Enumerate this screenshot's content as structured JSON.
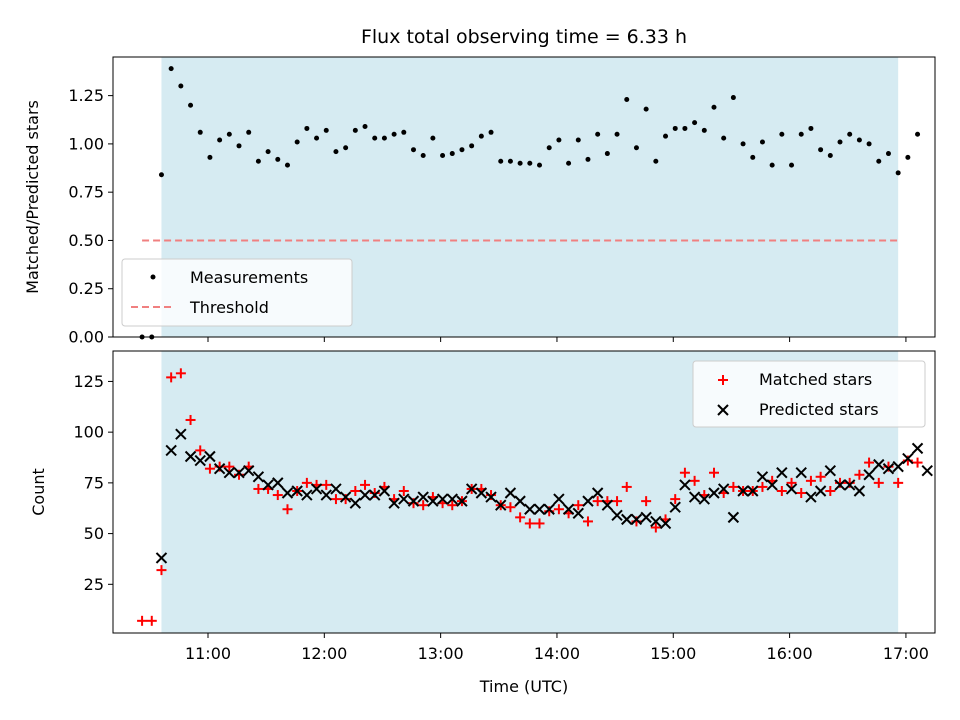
{
  "chart_data": [
    {
      "type": "scatter",
      "title": "Flux total observing time = 6.33 h",
      "xlabel": "",
      "ylabel": "Matched/Predicted stars",
      "ylim": [
        0,
        1.45
      ],
      "yticks": [
        "0.00",
        "0.25",
        "0.50",
        "0.75",
        "1.00",
        "1.25"
      ],
      "observing_window": {
        "start": "10:36",
        "end": "16:56",
        "color": "#add8e6"
      },
      "threshold": {
        "name": "Threshold",
        "value": 0.5,
        "x_start": "10:26",
        "x_end": "16:56",
        "color": "#f08080"
      },
      "series": [
        {
          "name": "Measurements",
          "color": "#000000",
          "points": [
            [
              "10:26",
              0.0
            ],
            [
              "10:31",
              0.0
            ],
            [
              "10:36",
              0.84
            ],
            [
              "10:41",
              1.39
            ],
            [
              "10:46",
              1.3
            ],
            [
              "10:51",
              1.2
            ],
            [
              "10:56",
              1.06
            ],
            [
              "11:01",
              0.93
            ],
            [
              "11:06",
              1.02
            ],
            [
              "11:11",
              1.05
            ],
            [
              "11:16",
              0.99
            ],
            [
              "11:21",
              1.06
            ],
            [
              "11:26",
              0.91
            ],
            [
              "11:31",
              0.96
            ],
            [
              "11:36",
              0.92
            ],
            [
              "11:41",
              0.89
            ],
            [
              "11:46",
              1.01
            ],
            [
              "11:51",
              1.08
            ],
            [
              "11:56",
              1.03
            ],
            [
              "12:01",
              1.07
            ],
            [
              "12:06",
              0.96
            ],
            [
              "12:11",
              0.98
            ],
            [
              "12:16",
              1.07
            ],
            [
              "12:21",
              1.09
            ],
            [
              "12:26",
              1.03
            ],
            [
              "12:31",
              1.03
            ],
            [
              "12:36",
              1.05
            ],
            [
              "12:41",
              1.06
            ],
            [
              "12:46",
              0.97
            ],
            [
              "12:51",
              0.94
            ],
            [
              "12:56",
              1.03
            ],
            [
              "13:01",
              0.94
            ],
            [
              "13:06",
              0.95
            ],
            [
              "13:11",
              0.97
            ],
            [
              "13:16",
              0.99
            ],
            [
              "13:21",
              1.04
            ],
            [
              "13:26",
              1.06
            ],
            [
              "13:31",
              0.91
            ],
            [
              "13:36",
              0.91
            ],
            [
              "13:41",
              0.9
            ],
            [
              "13:46",
              0.9
            ],
            [
              "13:51",
              0.89
            ],
            [
              "13:56",
              0.98
            ],
            [
              "14:01",
              1.02
            ],
            [
              "14:06",
              0.9
            ],
            [
              "14:11",
              1.02
            ],
            [
              "14:16",
              0.92
            ],
            [
              "14:21",
              1.05
            ],
            [
              "14:26",
              0.95
            ],
            [
              "14:31",
              1.05
            ],
            [
              "14:36",
              1.23
            ],
            [
              "14:41",
              0.98
            ],
            [
              "14:46",
              1.18
            ],
            [
              "14:51",
              0.91
            ],
            [
              "14:56",
              1.04
            ],
            [
              "15:01",
              1.08
            ],
            [
              "15:06",
              1.08
            ],
            [
              "15:11",
              1.11
            ],
            [
              "15:16",
              1.07
            ],
            [
              "15:21",
              1.19
            ],
            [
              "15:26",
              1.03
            ],
            [
              "15:31",
              1.24
            ],
            [
              "15:36",
              1.0
            ],
            [
              "15:41",
              0.93
            ],
            [
              "15:46",
              1.01
            ],
            [
              "15:51",
              0.89
            ],
            [
              "15:56",
              1.05
            ],
            [
              "16:01",
              0.89
            ],
            [
              "16:06",
              1.05
            ],
            [
              "16:11",
              1.08
            ],
            [
              "16:16",
              0.97
            ],
            [
              "16:21",
              0.94
            ],
            [
              "16:26",
              1.01
            ],
            [
              "16:31",
              1.05
            ],
            [
              "16:36",
              1.02
            ],
            [
              "16:41",
              1.0
            ],
            [
              "16:46",
              0.91
            ],
            [
              "16:51",
              0.95
            ],
            [
              "16:56",
              0.85
            ],
            [
              "17:01",
              0.93
            ],
            [
              "17:06",
              1.05
            ]
          ]
        }
      ],
      "legend": {
        "location": "lower-left",
        "entries": [
          "Measurements",
          "Threshold"
        ]
      },
      "grid": false
    },
    {
      "type": "scatter",
      "title": "",
      "xlabel": "Time (UTC)",
      "ylabel": "Count",
      "xticks": [
        "11:00",
        "12:00",
        "13:00",
        "14:00",
        "15:00",
        "16:00",
        "17:00"
      ],
      "xlim": [
        "10:11",
        "17:15"
      ],
      "ylim": [
        1,
        140
      ],
      "yticks": [
        "25",
        "50",
        "75",
        "100",
        "125"
      ],
      "observing_window": {
        "start": "10:36",
        "end": "16:56",
        "color": "#add8e6"
      },
      "series": [
        {
          "name": "Matched stars",
          "marker": "+",
          "color": "#ff0000",
          "points": [
            [
              "10:26",
              7
            ],
            [
              "10:31",
              7
            ],
            [
              "10:36",
              32
            ],
            [
              "10:41",
              127
            ],
            [
              "10:46",
              129
            ],
            [
              "10:51",
              106
            ],
            [
              "10:56",
              91
            ],
            [
              "11:01",
              82
            ],
            [
              "11:06",
              83
            ],
            [
              "11:11",
              83
            ],
            [
              "11:16",
              79
            ],
            [
              "11:21",
              83
            ],
            [
              "11:26",
              72
            ],
            [
              "11:31",
              72
            ],
            [
              "11:36",
              69
            ],
            [
              "11:41",
              62
            ],
            [
              "11:46",
              71
            ],
            [
              "11:51",
              75
            ],
            [
              "11:56",
              74
            ],
            [
              "12:01",
              74
            ],
            [
              "12:06",
              67
            ],
            [
              "12:11",
              67
            ],
            [
              "12:16",
              71
            ],
            [
              "12:21",
              74
            ],
            [
              "12:26",
              70
            ],
            [
              "12:31",
              73
            ],
            [
              "12:36",
              67
            ],
            [
              "12:41",
              71
            ],
            [
              "12:46",
              65
            ],
            [
              "12:51",
              64
            ],
            [
              "12:56",
              68
            ],
            [
              "13:01",
              65
            ],
            [
              "13:06",
              64
            ],
            [
              "13:11",
              66
            ],
            [
              "13:16",
              72
            ],
            [
              "13:21",
              72
            ],
            [
              "13:26",
              69
            ],
            [
              "13:31",
              64
            ],
            [
              "13:36",
              63
            ],
            [
              "13:41",
              58
            ],
            [
              "13:46",
              55
            ],
            [
              "13:51",
              55
            ],
            [
              "13:56",
              61
            ],
            [
              "14:01",
              62
            ],
            [
              "14:06",
              60
            ],
            [
              "14:11",
              64
            ],
            [
              "14:16",
              56
            ],
            [
              "14:21",
              66
            ],
            [
              "14:26",
              66
            ],
            [
              "14:31",
              66
            ],
            [
              "14:36",
              73
            ],
            [
              "14:41",
              56
            ],
            [
              "14:46",
              66
            ],
            [
              "14:51",
              53
            ],
            [
              "14:56",
              57
            ],
            [
              "15:01",
              67
            ],
            [
              "15:06",
              80
            ],
            [
              "15:11",
              76
            ],
            [
              "15:16",
              69
            ],
            [
              "15:21",
              80
            ],
            [
              "15:26",
              70
            ],
            [
              "15:31",
              73
            ],
            [
              "15:36",
              71
            ],
            [
              "15:41",
              71
            ],
            [
              "15:46",
              73
            ],
            [
              "15:51",
              76
            ],
            [
              "15:56",
              71
            ],
            [
              "16:01",
              75
            ],
            [
              "16:06",
              70
            ],
            [
              "16:11",
              76
            ],
            [
              "16:16",
              78
            ],
            [
              "16:21",
              71
            ],
            [
              "16:26",
              75
            ],
            [
              "16:31",
              75
            ],
            [
              "16:36",
              79
            ],
            [
              "16:41",
              85
            ],
            [
              "16:46",
              75
            ],
            [
              "16:51",
              83
            ],
            [
              "16:56",
              75
            ],
            [
              "17:01",
              86
            ],
            [
              "17:06",
              85
            ]
          ]
        },
        {
          "name": "Predicted stars",
          "marker": "x",
          "color": "#000000",
          "points": [
            [
              "10:36",
              38
            ],
            [
              "10:41",
              91
            ],
            [
              "10:46",
              99
            ],
            [
              "10:51",
              88
            ],
            [
              "10:56",
              86
            ],
            [
              "11:01",
              88
            ],
            [
              "11:06",
              82
            ],
            [
              "11:11",
              80
            ],
            [
              "11:16",
              80
            ],
            [
              "11:21",
              81
            ],
            [
              "11:26",
              78
            ],
            [
              "11:31",
              74
            ],
            [
              "11:36",
              75
            ],
            [
              "11:41",
              70
            ],
            [
              "11:46",
              71
            ],
            [
              "11:51",
              69
            ],
            [
              "11:56",
              72
            ],
            [
              "12:01",
              69
            ],
            [
              "12:06",
              72
            ],
            [
              "12:11",
              68
            ],
            [
              "12:16",
              65
            ],
            [
              "12:21",
              69
            ],
            [
              "12:26",
              69
            ],
            [
              "12:31",
              71
            ],
            [
              "12:36",
              65
            ],
            [
              "12:41",
              67
            ],
            [
              "12:46",
              66
            ],
            [
              "12:51",
              68
            ],
            [
              "12:56",
              66
            ],
            [
              "13:01",
              67
            ],
            [
              "13:06",
              67
            ],
            [
              "13:11",
              66
            ],
            [
              "13:16",
              72
            ],
            [
              "13:21",
              70
            ],
            [
              "13:26",
              68
            ],
            [
              "13:31",
              64
            ],
            [
              "13:36",
              70
            ],
            [
              "13:41",
              66
            ],
            [
              "13:46",
              62
            ],
            [
              "13:51",
              62
            ],
            [
              "13:56",
              62
            ],
            [
              "14:01",
              67
            ],
            [
              "14:06",
              62
            ],
            [
              "14:11",
              60
            ],
            [
              "14:16",
              66
            ],
            [
              "14:21",
              70
            ],
            [
              "14:26",
              64
            ],
            [
              "14:31",
              59
            ],
            [
              "14:36",
              57
            ],
            [
              "14:41",
              57
            ],
            [
              "14:46",
              58
            ],
            [
              "14:51",
              56
            ],
            [
              "14:56",
              55
            ],
            [
              "15:01",
              63
            ],
            [
              "15:06",
              74
            ],
            [
              "15:11",
              68
            ],
            [
              "15:16",
              67
            ],
            [
              "15:21",
              70
            ],
            [
              "15:26",
              72
            ],
            [
              "15:31",
              58
            ],
            [
              "15:36",
              71
            ],
            [
              "15:41",
              71
            ],
            [
              "15:46",
              78
            ],
            [
              "15:51",
              74
            ],
            [
              "15:56",
              80
            ],
            [
              "16:01",
              72
            ],
            [
              "16:06",
              80
            ],
            [
              "16:11",
              68
            ],
            [
              "16:16",
              71
            ],
            [
              "16:21",
              81
            ],
            [
              "16:26",
              74
            ],
            [
              "16:31",
              74
            ],
            [
              "16:36",
              71
            ],
            [
              "16:41",
              79
            ],
            [
              "16:46",
              84
            ],
            [
              "16:51",
              82
            ],
            [
              "16:56",
              83
            ],
            [
              "17:01",
              87
            ],
            [
              "17:06",
              92
            ],
            [
              "17:11",
              81
            ]
          ]
        }
      ],
      "legend": {
        "location": "upper-right",
        "entries": [
          "Matched stars",
          "Predicted stars"
        ]
      },
      "grid": false
    }
  ]
}
